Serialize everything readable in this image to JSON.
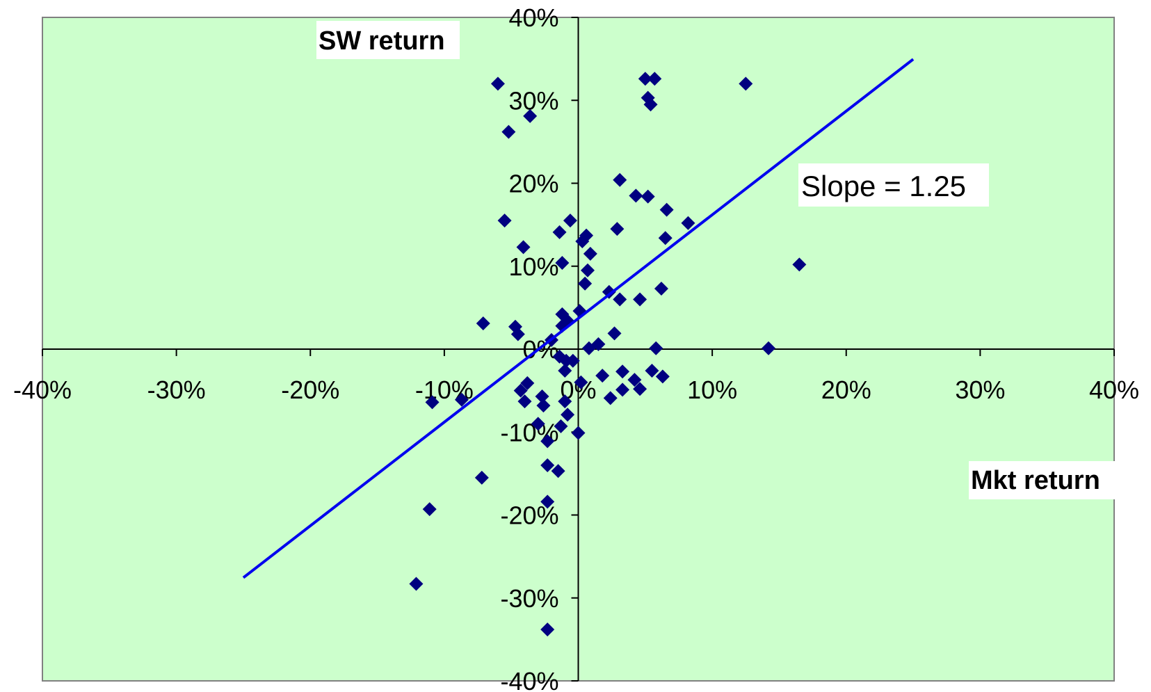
{
  "chart_data": {
    "type": "scatter",
    "plot_background": "#ccffcc",
    "marker_color": "#000080",
    "trendline_color": "#0000ee",
    "xlim": [
      -0.4,
      0.4
    ],
    "ylim": [
      -0.4,
      0.4
    ],
    "x_ticks": [
      -0.4,
      -0.3,
      -0.2,
      -0.1,
      0.0,
      0.1,
      0.2,
      0.3,
      0.4
    ],
    "y_ticks": [
      -0.4,
      -0.3,
      -0.2,
      -0.1,
      0.0,
      0.1,
      0.2,
      0.3,
      0.4
    ],
    "x_tick_labels": [
      "-40%",
      "-30%",
      "-20%",
      "-10%",
      "0%",
      "10%",
      "20%",
      "30%",
      "40%"
    ],
    "y_tick_labels": [
      "-40%",
      "-30%",
      "-20%",
      "-10%",
      "0%",
      "10%",
      "20%",
      "30%",
      "40%"
    ],
    "xlabel": "Mkt return",
    "ylabel": "SW return",
    "annotation": "Slope = 1.25",
    "trendline": {
      "slope": 1.25,
      "intercept": 0.037,
      "x_range": [
        -0.25,
        0.25
      ]
    },
    "points": [
      [
        -0.06,
        0.32
      ],
      [
        -0.036,
        0.281
      ],
      [
        -0.052,
        0.262
      ],
      [
        -0.055,
        0.155
      ],
      [
        -0.041,
        0.123
      ],
      [
        -0.014,
        0.141
      ],
      [
        -0.006,
        0.155
      ],
      [
        -0.012,
        0.104
      ],
      [
        0.006,
        0.137
      ],
      [
        0.003,
        0.13
      ],
      [
        0.009,
        0.115
      ],
      [
        0.007,
        0.095
      ],
      [
        0.005,
        0.079
      ],
      [
        -0.071,
        0.031
      ],
      [
        -0.047,
        0.027
      ],
      [
        -0.045,
        0.018
      ],
      [
        -0.012,
        0.042
      ],
      [
        -0.008,
        0.034
      ],
      [
        -0.012,
        0.028
      ],
      [
        -0.02,
        0.011
      ],
      [
        0.001,
        0.046
      ],
      [
        0.023,
        0.069
      ],
      [
        0.031,
        0.06
      ],
      [
        0.046,
        0.06
      ],
      [
        0.031,
        0.204
      ],
      [
        0.043,
        0.185
      ],
      [
        0.052,
        0.184
      ],
      [
        0.066,
        0.168
      ],
      [
        0.082,
        0.152
      ],
      [
        0.029,
        0.145
      ],
      [
        0.065,
        0.134
      ],
      [
        0.062,
        0.073
      ],
      [
        0.05,
        0.326
      ],
      [
        0.057,
        0.326
      ],
      [
        0.052,
        0.303
      ],
      [
        0.054,
        0.295
      ],
      [
        0.125,
        0.32
      ],
      [
        0.165,
        0.102
      ],
      [
        0.142,
        0.001
      ],
      [
        0.058,
        0.001
      ],
      [
        0.027,
        0.019
      ],
      [
        0.015,
        0.006
      ],
      [
        0.008,
        0.001
      ],
      [
        -0.014,
        -0.009
      ],
      [
        -0.009,
        -0.014
      ],
      [
        -0.004,
        -0.014
      ],
      [
        -0.01,
        -0.026
      ],
      [
        0.018,
        -0.032
      ],
      [
        0.042,
        -0.037
      ],
      [
        0.033,
        -0.027
      ],
      [
        0.055,
        -0.026
      ],
      [
        0.063,
        -0.033
      ],
      [
        0.046,
        -0.048
      ],
      [
        0.033,
        -0.049
      ],
      [
        0.024,
        -0.059
      ],
      [
        0.002,
        -0.04
      ],
      [
        -0.038,
        -0.041
      ],
      [
        -0.043,
        -0.05
      ],
      [
        -0.04,
        -0.063
      ],
      [
        -0.087,
        -0.061
      ],
      [
        -0.109,
        -0.064
      ],
      [
        -0.027,
        -0.057
      ],
      [
        -0.026,
        -0.068
      ],
      [
        -0.01,
        -0.063
      ],
      [
        -0.008,
        -0.079
      ],
      [
        -0.013,
        -0.093
      ],
      [
        -0.03,
        -0.09
      ],
      [
        -0.023,
        -0.111
      ],
      [
        0.0,
        -0.101
      ],
      [
        -0.015,
        -0.147
      ],
      [
        -0.023,
        -0.14
      ],
      [
        -0.072,
        -0.155
      ],
      [
        -0.023,
        -0.184
      ],
      [
        -0.111,
        -0.193
      ],
      [
        -0.121,
        -0.283
      ],
      [
        -0.023,
        -0.338
      ]
    ]
  }
}
